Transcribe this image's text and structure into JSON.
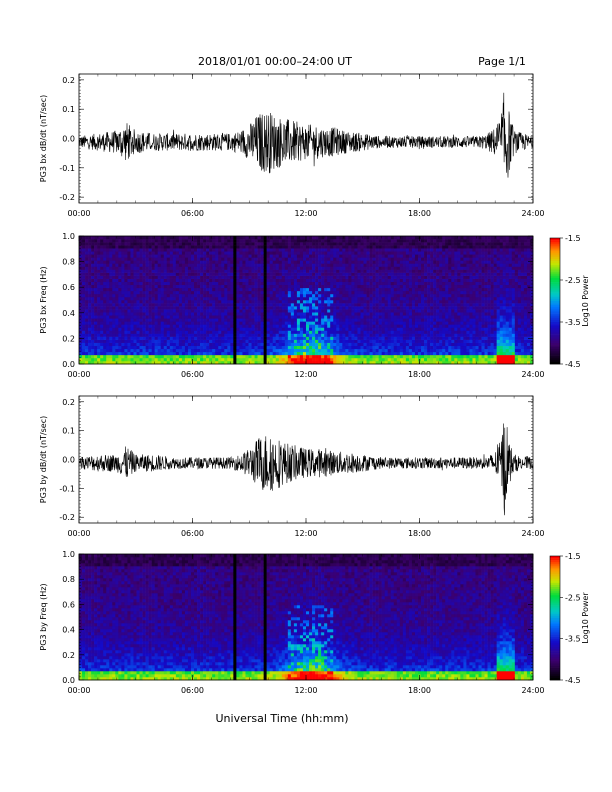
{
  "header": {
    "title": "2018/01/01  00:00–24:00 UT",
    "page": "Page 1/1"
  },
  "footer": {
    "xlabel": "Universal Time (hh:mm)"
  },
  "chart_data": [
    {
      "type": "line",
      "ylabel": "PG3 bx dB/dt (nT/sec)",
      "x_ticks": [
        "00:00",
        "06:00",
        "12:00",
        "18:00",
        "24:00"
      ],
      "xlim": [
        0,
        24
      ],
      "ylim": [
        -0.22,
        0.22
      ],
      "y_ticks": [
        "0.2",
        "0.1",
        "0.0",
        "-0.1",
        "-0.2"
      ],
      "envelope": {
        "hours": [
          0,
          1,
          2,
          2.5,
          3,
          4,
          5,
          6,
          7,
          8,
          8.5,
          9,
          9.5,
          10,
          10.5,
          11,
          11.5,
          12,
          12.5,
          13,
          13.5,
          14,
          15,
          16,
          17,
          18,
          19,
          20,
          21,
          21.5,
          22,
          22.3,
          22.5,
          22.7,
          23,
          24
        ],
        "amplitude": [
          0.02,
          0.03,
          0.04,
          0.07,
          0.04,
          0.03,
          0.03,
          0.03,
          0.03,
          0.03,
          0.04,
          0.06,
          0.1,
          0.11,
          0.09,
          0.08,
          0.07,
          0.06,
          0.06,
          0.05,
          0.05,
          0.04,
          0.03,
          0.02,
          0.02,
          0.02,
          0.02,
          0.02,
          0.02,
          0.025,
          0.05,
          0.1,
          0.19,
          0.12,
          0.04,
          0.02
        ]
      }
    },
    {
      "type": "heatmap",
      "ylabel": "PG3 bx Freq (Hz)",
      "x_ticks": [
        "00:00",
        "06:00",
        "12:00",
        "18:00",
        "24:00"
      ],
      "xlim": [
        0,
        24
      ],
      "ylim": [
        0,
        1.0
      ],
      "y_ticks": [
        "1.0",
        "0.8",
        "0.6",
        "0.4",
        "0.2",
        "0.0"
      ],
      "colorbar": {
        "label": "Log10 Power",
        "ticks": [
          "-1.5",
          "-2.5",
          "-3.5",
          "-4.5"
        ],
        "range": [
          -4.5,
          -1.5
        ]
      },
      "gaps_hours": [
        8.2,
        9.8
      ]
    },
    {
      "type": "line",
      "ylabel": "PG3 by dB/dt (nT/sec)",
      "x_ticks": [
        "00:00",
        "06:00",
        "12:00",
        "18:00",
        "24:00"
      ],
      "xlim": [
        0,
        24
      ],
      "ylim": [
        -0.22,
        0.22
      ],
      "y_ticks": [
        "0.2",
        "0.1",
        "0.0",
        "-0.1",
        "-0.2"
      ],
      "envelope": {
        "hours": [
          0,
          1,
          2,
          2.5,
          3,
          4,
          5,
          6,
          7,
          8,
          8.5,
          9,
          9.5,
          10,
          10.5,
          11,
          11.5,
          12,
          12.5,
          13,
          13.5,
          14,
          15,
          16,
          17,
          18,
          19,
          20,
          21,
          21.5,
          22,
          22.3,
          22.5,
          22.7,
          23,
          24
        ],
        "amplitude": [
          0.02,
          0.03,
          0.03,
          0.06,
          0.03,
          0.03,
          0.02,
          0.02,
          0.02,
          0.02,
          0.03,
          0.05,
          0.09,
          0.11,
          0.09,
          0.07,
          0.06,
          0.05,
          0.05,
          0.05,
          0.04,
          0.04,
          0.03,
          0.02,
          0.02,
          0.02,
          0.02,
          0.02,
          0.02,
          0.02,
          0.04,
          0.08,
          0.19,
          0.09,
          0.03,
          0.02
        ]
      }
    },
    {
      "type": "heatmap",
      "ylabel": "PG3 by Freq (Hz)",
      "x_ticks": [
        "00:00",
        "06:00",
        "12:00",
        "18:00",
        "24:00"
      ],
      "xlim": [
        0,
        24
      ],
      "ylim": [
        0,
        1.0
      ],
      "y_ticks": [
        "1.0",
        "0.8",
        "0.6",
        "0.4",
        "0.2",
        "0.0"
      ],
      "colorbar": {
        "label": "Log10 Power",
        "ticks": [
          "-1.5",
          "-2.5",
          "-3.5",
          "-4.5"
        ],
        "range": [
          -4.5,
          -1.5
        ]
      },
      "gaps_hours": [
        8.2,
        9.8
      ]
    }
  ]
}
